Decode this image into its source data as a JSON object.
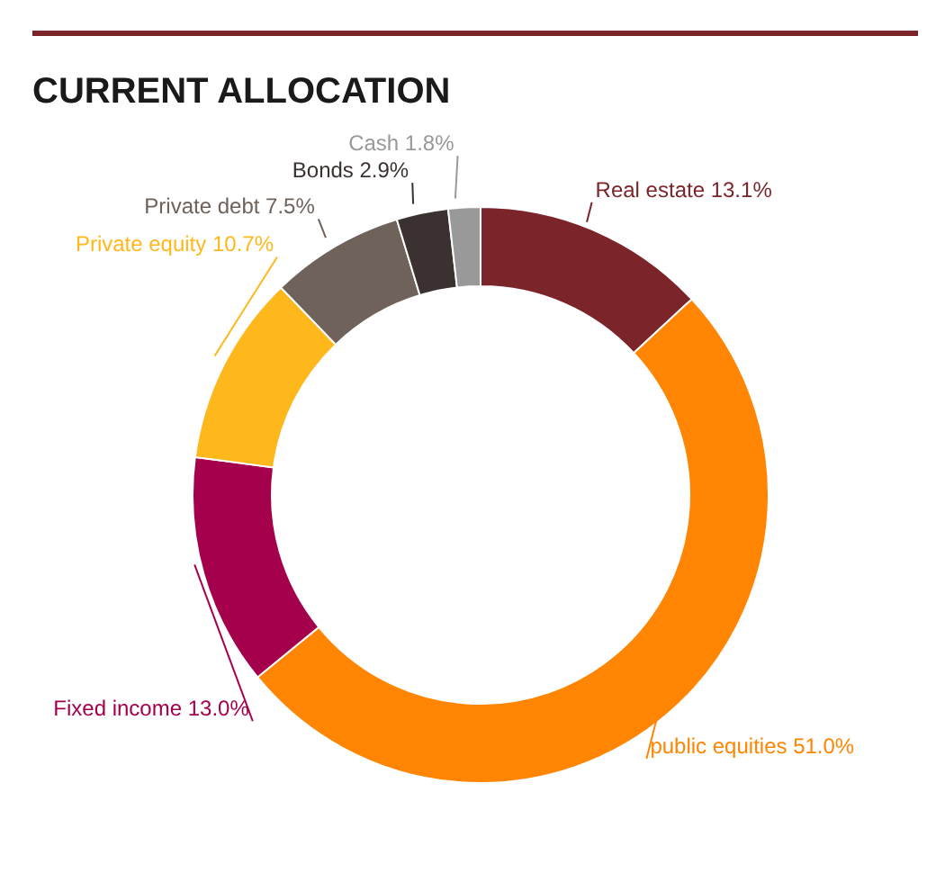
{
  "chart_data": {
    "type": "donut",
    "title": "CURRENT ALLOCATION",
    "categories": [
      "Real estate",
      "public equities",
      "Fixed income",
      "Private equity",
      "Private debt",
      "Bonds",
      "Cash"
    ],
    "values": [
      13.1,
      51.0,
      13.0,
      10.7,
      7.5,
      2.9,
      1.8
    ],
    "value_labels": [
      "13.1%",
      "51.0%",
      "13.0%",
      "10.7%",
      "7.5%",
      "2.9%",
      "1.8%"
    ],
    "colors": [
      "#7b2429",
      "#ff8503",
      "#a5004c",
      "#ffb81c",
      "#6e625a",
      "#3a3130",
      "#999999"
    ],
    "legend": false
  }
}
